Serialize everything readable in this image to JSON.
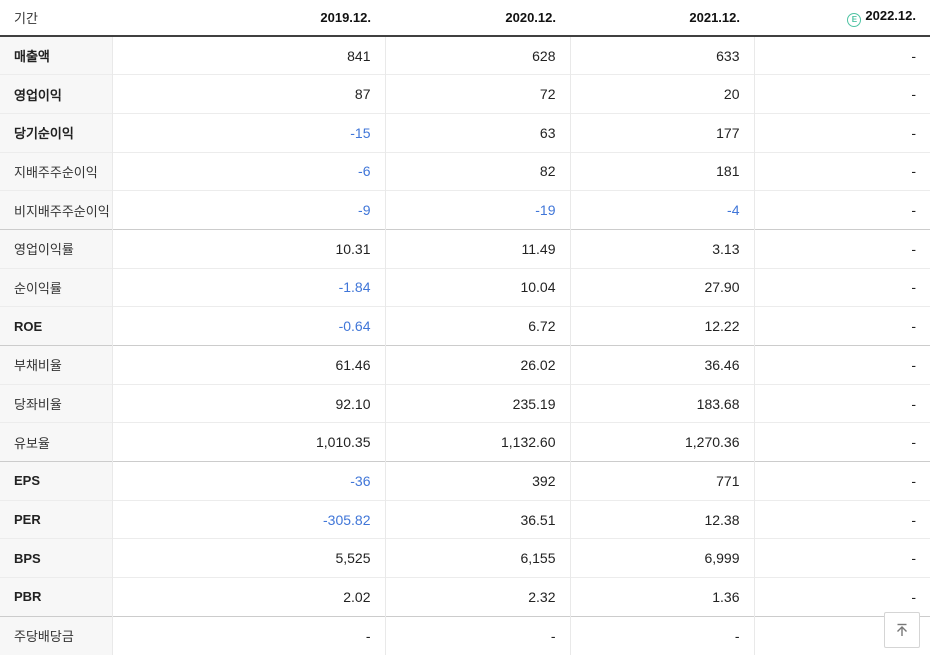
{
  "colors": {
    "negative_value": "#4076d8",
    "estimate_badge": "#4fc3a3",
    "header_border": "#404040"
  },
  "table": {
    "header": {
      "period_label": "기간",
      "estimate_mark": "E",
      "columns": [
        {
          "label": "2019.12.",
          "estimate": false
        },
        {
          "label": "2020.12.",
          "estimate": false
        },
        {
          "label": "2021.12.",
          "estimate": false
        },
        {
          "label": "2022.12.",
          "estimate": true
        }
      ]
    },
    "rows": [
      {
        "label": "매출액",
        "bold": true,
        "group_start": false,
        "values": [
          {
            "text": "841",
            "negative": false
          },
          {
            "text": "628",
            "negative": false
          },
          {
            "text": "633",
            "negative": false
          },
          {
            "text": "-",
            "negative": false
          }
        ]
      },
      {
        "label": "영업이익",
        "bold": true,
        "group_start": false,
        "values": [
          {
            "text": "87",
            "negative": false
          },
          {
            "text": "72",
            "negative": false
          },
          {
            "text": "20",
            "negative": false
          },
          {
            "text": "-",
            "negative": false
          }
        ]
      },
      {
        "label": "당기순이익",
        "bold": true,
        "group_start": false,
        "values": [
          {
            "text": "-15",
            "negative": true
          },
          {
            "text": "63",
            "negative": false
          },
          {
            "text": "177",
            "negative": false
          },
          {
            "text": "-",
            "negative": false
          }
        ]
      },
      {
        "label": "지배주주순이익",
        "bold": false,
        "group_start": false,
        "values": [
          {
            "text": "-6",
            "negative": true
          },
          {
            "text": "82",
            "negative": false
          },
          {
            "text": "181",
            "negative": false
          },
          {
            "text": "-",
            "negative": false
          }
        ]
      },
      {
        "label": "비지배주주순이익",
        "bold": false,
        "group_start": false,
        "values": [
          {
            "text": "-9",
            "negative": true
          },
          {
            "text": "-19",
            "negative": true
          },
          {
            "text": "-4",
            "negative": true
          },
          {
            "text": "-",
            "negative": false
          }
        ]
      },
      {
        "label": "영업이익률",
        "bold": false,
        "group_start": true,
        "values": [
          {
            "text": "10.31",
            "negative": false
          },
          {
            "text": "11.49",
            "negative": false
          },
          {
            "text": "3.13",
            "negative": false
          },
          {
            "text": "-",
            "negative": false
          }
        ]
      },
      {
        "label": "순이익률",
        "bold": false,
        "group_start": false,
        "values": [
          {
            "text": "-1.84",
            "negative": true
          },
          {
            "text": "10.04",
            "negative": false
          },
          {
            "text": "27.90",
            "negative": false
          },
          {
            "text": "-",
            "negative": false
          }
        ]
      },
      {
        "label": "ROE",
        "bold": true,
        "group_start": false,
        "values": [
          {
            "text": "-0.64",
            "negative": true
          },
          {
            "text": "6.72",
            "negative": false
          },
          {
            "text": "12.22",
            "negative": false
          },
          {
            "text": "-",
            "negative": false
          }
        ]
      },
      {
        "label": "부채비율",
        "bold": false,
        "group_start": true,
        "values": [
          {
            "text": "61.46",
            "negative": false
          },
          {
            "text": "26.02",
            "negative": false
          },
          {
            "text": "36.46",
            "negative": false
          },
          {
            "text": "-",
            "negative": false
          }
        ]
      },
      {
        "label": "당좌비율",
        "bold": false,
        "group_start": false,
        "values": [
          {
            "text": "92.10",
            "negative": false
          },
          {
            "text": "235.19",
            "negative": false
          },
          {
            "text": "183.68",
            "negative": false
          },
          {
            "text": "-",
            "negative": false
          }
        ]
      },
      {
        "label": "유보율",
        "bold": false,
        "group_start": false,
        "values": [
          {
            "text": "1,010.35",
            "negative": false
          },
          {
            "text": "1,132.60",
            "negative": false
          },
          {
            "text": "1,270.36",
            "negative": false
          },
          {
            "text": "-",
            "negative": false
          }
        ]
      },
      {
        "label": "EPS",
        "bold": true,
        "group_start": true,
        "values": [
          {
            "text": "-36",
            "negative": true
          },
          {
            "text": "392",
            "negative": false
          },
          {
            "text": "771",
            "negative": false
          },
          {
            "text": "-",
            "negative": false
          }
        ]
      },
      {
        "label": "PER",
        "bold": true,
        "group_start": false,
        "values": [
          {
            "text": "-305.82",
            "negative": true
          },
          {
            "text": "36.51",
            "negative": false
          },
          {
            "text": "12.38",
            "negative": false
          },
          {
            "text": "-",
            "negative": false
          }
        ]
      },
      {
        "label": "BPS",
        "bold": true,
        "group_start": false,
        "values": [
          {
            "text": "5,525",
            "negative": false
          },
          {
            "text": "6,155",
            "negative": false
          },
          {
            "text": "6,999",
            "negative": false
          },
          {
            "text": "-",
            "negative": false
          }
        ]
      },
      {
        "label": "PBR",
        "bold": true,
        "group_start": false,
        "values": [
          {
            "text": "2.02",
            "negative": false
          },
          {
            "text": "2.32",
            "negative": false
          },
          {
            "text": "1.36",
            "negative": false
          },
          {
            "text": "-",
            "negative": false
          }
        ]
      },
      {
        "label": "주당배당금",
        "bold": false,
        "group_start": true,
        "values": [
          {
            "text": "-",
            "negative": false
          },
          {
            "text": "-",
            "negative": false
          },
          {
            "text": "-",
            "negative": false
          },
          {
            "text": "-",
            "negative": false
          }
        ]
      }
    ]
  },
  "scroll_top": {
    "icon": "arrow-up-to-top-icon"
  }
}
